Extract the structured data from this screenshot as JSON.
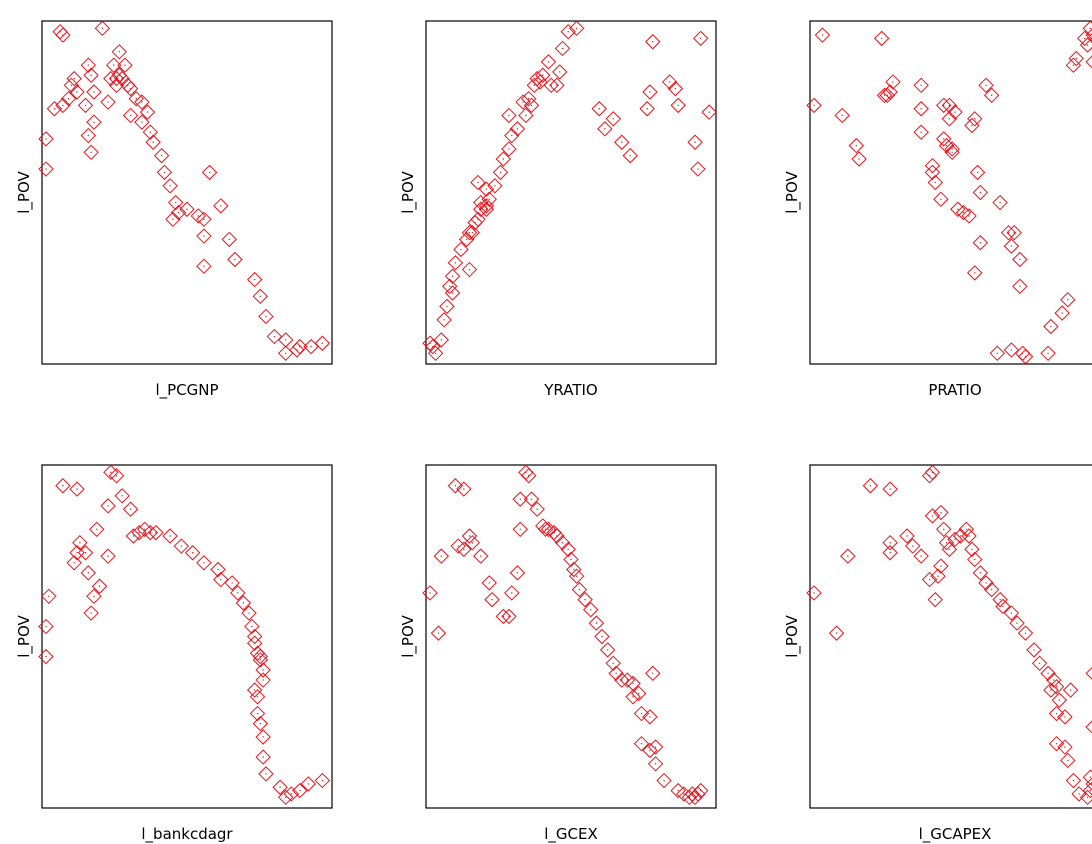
{
  "colors": {
    "marker": "#e8131b",
    "frame": "#000000",
    "background": "#ffffff"
  },
  "chart_data": [
    {
      "type": "scatter",
      "xlabel": "l_PCGNP",
      "ylabel": "l_POV",
      "xlim": [
        0,
        1
      ],
      "ylim": [
        0,
        1
      ],
      "points": [
        [
          0.05,
          0.98
        ],
        [
          0.06,
          0.97
        ],
        [
          0.2,
          0.99
        ],
        [
          0.0,
          0.66
        ],
        [
          0.0,
          0.57
        ],
        [
          0.03,
          0.75
        ],
        [
          0.06,
          0.76
        ],
        [
          0.08,
          0.78
        ],
        [
          0.09,
          0.82
        ],
        [
          0.11,
          0.8
        ],
        [
          0.1,
          0.84
        ],
        [
          0.14,
          0.76
        ],
        [
          0.16,
          0.85
        ],
        [
          0.15,
          0.88
        ],
        [
          0.17,
          0.8
        ],
        [
          0.17,
          0.71
        ],
        [
          0.15,
          0.67
        ],
        [
          0.16,
          0.62
        ],
        [
          0.22,
          0.77
        ],
        [
          0.23,
          0.84
        ],
        [
          0.24,
          0.88
        ],
        [
          0.25,
          0.84
        ],
        [
          0.26,
          0.85
        ],
        [
          0.27,
          0.84
        ],
        [
          0.25,
          0.82
        ],
        [
          0.26,
          0.92
        ],
        [
          0.28,
          0.88
        ],
        [
          0.29,
          0.82
        ],
        [
          0.3,
          0.81
        ],
        [
          0.32,
          0.78
        ],
        [
          0.34,
          0.77
        ],
        [
          0.3,
          0.73
        ],
        [
          0.34,
          0.71
        ],
        [
          0.36,
          0.74
        ],
        [
          0.37,
          0.68
        ],
        [
          0.38,
          0.65
        ],
        [
          0.41,
          0.61
        ],
        [
          0.42,
          0.56
        ],
        [
          0.44,
          0.52
        ],
        [
          0.46,
          0.47
        ],
        [
          0.47,
          0.44
        ],
        [
          0.45,
          0.42
        ],
        [
          0.5,
          0.45
        ],
        [
          0.54,
          0.43
        ],
        [
          0.56,
          0.42
        ],
        [
          0.58,
          0.56
        ],
        [
          0.62,
          0.46
        ],
        [
          0.56,
          0.37
        ],
        [
          0.56,
          0.28
        ],
        [
          0.65,
          0.36
        ],
        [
          0.67,
          0.3
        ],
        [
          0.74,
          0.24
        ],
        [
          0.76,
          0.19
        ],
        [
          0.78,
          0.13
        ],
        [
          0.81,
          0.07
        ],
        [
          0.85,
          0.06
        ],
        [
          0.85,
          0.02
        ],
        [
          0.89,
          0.03
        ],
        [
          0.9,
          0.04
        ],
        [
          0.94,
          0.04
        ],
        [
          0.98,
          0.05
        ]
      ]
    },
    {
      "type": "scatter",
      "xlabel": "YRATIO",
      "ylabel": "l_POV",
      "xlim": [
        0,
        1
      ],
      "ylim": [
        0,
        1
      ],
      "points": [
        [
          0.0,
          0.05
        ],
        [
          0.01,
          0.04
        ],
        [
          0.02,
          0.02
        ],
        [
          0.04,
          0.06
        ],
        [
          0.05,
          0.12
        ],
        [
          0.06,
          0.16
        ],
        [
          0.07,
          0.22
        ],
        [
          0.08,
          0.25
        ],
        [
          0.09,
          0.29
        ],
        [
          0.11,
          0.33
        ],
        [
          0.13,
          0.36
        ],
        [
          0.14,
          0.38
        ],
        [
          0.15,
          0.38
        ],
        [
          0.16,
          0.41
        ],
        [
          0.18,
          0.45
        ],
        [
          0.2,
          0.46
        ],
        [
          0.21,
          0.48
        ],
        [
          0.23,
          0.52
        ],
        [
          0.17,
          0.53
        ],
        [
          0.18,
          0.47
        ],
        [
          0.17,
          0.42
        ],
        [
          0.2,
          0.45
        ],
        [
          0.25,
          0.56
        ],
        [
          0.26,
          0.6
        ],
        [
          0.28,
          0.63
        ],
        [
          0.29,
          0.67
        ],
        [
          0.31,
          0.69
        ],
        [
          0.34,
          0.73
        ],
        [
          0.33,
          0.77
        ],
        [
          0.35,
          0.78
        ],
        [
          0.37,
          0.82
        ],
        [
          0.38,
          0.84
        ],
        [
          0.39,
          0.83
        ],
        [
          0.4,
          0.85
        ],
        [
          0.42,
          0.89
        ],
        [
          0.43,
          0.82
        ],
        [
          0.45,
          0.82
        ],
        [
          0.46,
          0.86
        ],
        [
          0.47,
          0.93
        ],
        [
          0.49,
          0.98
        ],
        [
          0.52,
          0.99
        ],
        [
          0.6,
          0.75
        ],
        [
          0.62,
          0.69
        ],
        [
          0.65,
          0.72
        ],
        [
          0.71,
          0.61
        ],
        [
          0.68,
          0.65
        ],
        [
          0.77,
          0.75
        ],
        [
          0.78,
          0.8
        ],
        [
          0.85,
          0.83
        ],
        [
          0.87,
          0.81
        ],
        [
          0.88,
          0.76
        ],
        [
          0.94,
          0.65
        ],
        [
          0.95,
          0.57
        ],
        [
          0.99,
          0.74
        ],
        [
          0.79,
          0.95
        ],
        [
          0.96,
          0.96
        ],
        [
          0.28,
          0.73
        ],
        [
          0.36,
          0.76
        ],
        [
          0.14,
          0.27
        ],
        [
          0.2,
          0.51
        ],
        [
          0.08,
          0.2
        ]
      ]
    },
    {
      "type": "scatter",
      "xlabel": "PRATIO",
      "ylabel": "l_POV",
      "xlim": [
        0,
        1
      ],
      "ylim": [
        0,
        1
      ],
      "points": [
        [
          0.0,
          0.76
        ],
        [
          0.03,
          0.97
        ],
        [
          0.1,
          0.73
        ],
        [
          0.15,
          0.64
        ],
        [
          0.16,
          0.6
        ],
        [
          0.24,
          0.96
        ],
        [
          0.25,
          0.79
        ],
        [
          0.26,
          0.79
        ],
        [
          0.27,
          0.8
        ],
        [
          0.28,
          0.83
        ],
        [
          0.38,
          0.82
        ],
        [
          0.38,
          0.75
        ],
        [
          0.38,
          0.68
        ],
        [
          0.42,
          0.58
        ],
        [
          0.42,
          0.56
        ],
        [
          0.43,
          0.53
        ],
        [
          0.45,
          0.48
        ],
        [
          0.46,
          0.76
        ],
        [
          0.46,
          0.66
        ],
        [
          0.47,
          0.64
        ],
        [
          0.48,
          0.72
        ],
        [
          0.48,
          0.76
        ],
        [
          0.49,
          0.63
        ],
        [
          0.49,
          0.62
        ],
        [
          0.5,
          0.74
        ],
        [
          0.51,
          0.45
        ],
        [
          0.53,
          0.44
        ],
        [
          0.55,
          0.43
        ],
        [
          0.56,
          0.7
        ],
        [
          0.57,
          0.72
        ],
        [
          0.58,
          0.56
        ],
        [
          0.59,
          0.5
        ],
        [
          0.59,
          0.35
        ],
        [
          0.57,
          0.26
        ],
        [
          0.61,
          0.82
        ],
        [
          0.63,
          0.79
        ],
        [
          0.66,
          0.47
        ],
        [
          0.69,
          0.38
        ],
        [
          0.71,
          0.38
        ],
        [
          0.7,
          0.34
        ],
        [
          0.73,
          0.3
        ],
        [
          0.73,
          0.22
        ],
        [
          0.65,
          0.02
        ],
        [
          0.7,
          0.03
        ],
        [
          0.74,
          0.02
        ],
        [
          0.75,
          0.01
        ],
        [
          0.83,
          0.02
        ],
        [
          0.84,
          0.1
        ],
        [
          0.88,
          0.14
        ],
        [
          0.9,
          0.18
        ],
        [
          0.92,
          0.88
        ],
        [
          0.93,
          0.9
        ],
        [
          0.97,
          0.94
        ],
        [
          0.98,
          0.99
        ],
        [
          0.99,
          0.97
        ],
        [
          0.99,
          0.89
        ],
        [
          0.96,
          0.96
        ]
      ]
    },
    {
      "type": "scatter",
      "xlabel": "l_bankcdagr",
      "ylabel": "l_POV",
      "xlim": [
        0,
        1
      ],
      "ylim": [
        0,
        1
      ],
      "points": [
        [
          0.0,
          0.53
        ],
        [
          0.01,
          0.62
        ],
        [
          0.0,
          0.44
        ],
        [
          0.06,
          0.95
        ],
        [
          0.11,
          0.94
        ],
        [
          0.12,
          0.78
        ],
        [
          0.11,
          0.75
        ],
        [
          0.1,
          0.72
        ],
        [
          0.14,
          0.75
        ],
        [
          0.15,
          0.69
        ],
        [
          0.16,
          0.57
        ],
        [
          0.17,
          0.62
        ],
        [
          0.19,
          0.65
        ],
        [
          0.18,
          0.82
        ],
        [
          0.22,
          0.74
        ],
        [
          0.22,
          0.89
        ],
        [
          0.23,
          0.99
        ],
        [
          0.25,
          0.98
        ],
        [
          0.27,
          0.92
        ],
        [
          0.3,
          0.88
        ],
        [
          0.31,
          0.8
        ],
        [
          0.33,
          0.81
        ],
        [
          0.35,
          0.82
        ],
        [
          0.37,
          0.81
        ],
        [
          0.39,
          0.81
        ],
        [
          0.44,
          0.8
        ],
        [
          0.48,
          0.77
        ],
        [
          0.52,
          0.75
        ],
        [
          0.56,
          0.72
        ],
        [
          0.61,
          0.7
        ],
        [
          0.62,
          0.67
        ],
        [
          0.66,
          0.66
        ],
        [
          0.68,
          0.63
        ],
        [
          0.7,
          0.6
        ],
        [
          0.72,
          0.57
        ],
        [
          0.73,
          0.53
        ],
        [
          0.74,
          0.5
        ],
        [
          0.74,
          0.48
        ],
        [
          0.75,
          0.45
        ],
        [
          0.76,
          0.43
        ],
        [
          0.77,
          0.4
        ],
        [
          0.77,
          0.37
        ],
        [
          0.76,
          0.44
        ],
        [
          0.74,
          0.34
        ],
        [
          0.75,
          0.32
        ],
        [
          0.75,
          0.27
        ],
        [
          0.76,
          0.24
        ],
        [
          0.77,
          0.2
        ],
        [
          0.77,
          0.14
        ],
        [
          0.78,
          0.09
        ],
        [
          0.83,
          0.05
        ],
        [
          0.85,
          0.02
        ],
        [
          0.87,
          0.03
        ],
        [
          0.9,
          0.04
        ],
        [
          0.93,
          0.06
        ],
        [
          0.98,
          0.07
        ]
      ]
    },
    {
      "type": "scatter",
      "xlabel": "l_GCEX",
      "ylabel": "l_POV",
      "xlim": [
        0,
        1
      ],
      "ylim": [
        0,
        1
      ],
      "points": [
        [
          0.0,
          0.63
        ],
        [
          0.03,
          0.51
        ],
        [
          0.04,
          0.74
        ],
        [
          0.09,
          0.95
        ],
        [
          0.12,
          0.94
        ],
        [
          0.1,
          0.77
        ],
        [
          0.12,
          0.76
        ],
        [
          0.14,
          0.8
        ],
        [
          0.15,
          0.78
        ],
        [
          0.18,
          0.74
        ],
        [
          0.21,
          0.66
        ],
        [
          0.22,
          0.61
        ],
        [
          0.26,
          0.56
        ],
        [
          0.28,
          0.56
        ],
        [
          0.29,
          0.63
        ],
        [
          0.31,
          0.69
        ],
        [
          0.32,
          0.82
        ],
        [
          0.32,
          0.91
        ],
        [
          0.34,
          0.99
        ],
        [
          0.35,
          0.98
        ],
        [
          0.36,
          0.91
        ],
        [
          0.38,
          0.88
        ],
        [
          0.4,
          0.83
        ],
        [
          0.41,
          0.82
        ],
        [
          0.42,
          0.82
        ],
        [
          0.44,
          0.81
        ],
        [
          0.45,
          0.8
        ],
        [
          0.47,
          0.78
        ],
        [
          0.49,
          0.76
        ],
        [
          0.5,
          0.73
        ],
        [
          0.51,
          0.7
        ],
        [
          0.52,
          0.68
        ],
        [
          0.53,
          0.64
        ],
        [
          0.55,
          0.61
        ],
        [
          0.57,
          0.58
        ],
        [
          0.59,
          0.54
        ],
        [
          0.61,
          0.5
        ],
        [
          0.63,
          0.46
        ],
        [
          0.65,
          0.42
        ],
        [
          0.66,
          0.39
        ],
        [
          0.68,
          0.37
        ],
        [
          0.7,
          0.37
        ],
        [
          0.72,
          0.36
        ],
        [
          0.72,
          0.32
        ],
        [
          0.74,
          0.33
        ],
        [
          0.75,
          0.27
        ],
        [
          0.78,
          0.26
        ],
        [
          0.75,
          0.18
        ],
        [
          0.78,
          0.16
        ],
        [
          0.8,
          0.12
        ],
        [
          0.83,
          0.07
        ],
        [
          0.88,
          0.04
        ],
        [
          0.9,
          0.03
        ],
        [
          0.92,
          0.02
        ],
        [
          0.93,
          0.03
        ],
        [
          0.94,
          0.02
        ],
        [
          0.95,
          0.03
        ],
        [
          0.96,
          0.04
        ],
        [
          0.79,
          0.39
        ],
        [
          0.8,
          0.17
        ]
      ]
    },
    {
      "type": "scatter",
      "xlabel": "l_GCAPEX",
      "ylabel": "l_POV",
      "xlim": [
        0,
        1
      ],
      "ylim": [
        0,
        1
      ],
      "points": [
        [
          0.0,
          0.63
        ],
        [
          0.08,
          0.51
        ],
        [
          0.12,
          0.74
        ],
        [
          0.2,
          0.95
        ],
        [
          0.27,
          0.94
        ],
        [
          0.27,
          0.78
        ],
        [
          0.27,
          0.75
        ],
        [
          0.33,
          0.8
        ],
        [
          0.35,
          0.77
        ],
        [
          0.38,
          0.74
        ],
        [
          0.41,
          0.67
        ],
        [
          0.43,
          0.61
        ],
        [
          0.44,
          0.68
        ],
        [
          0.45,
          0.71
        ],
        [
          0.45,
          0.87
        ],
        [
          0.42,
          0.86
        ],
        [
          0.41,
          0.98
        ],
        [
          0.42,
          0.99
        ],
        [
          0.46,
          0.82
        ],
        [
          0.47,
          0.78
        ],
        [
          0.48,
          0.76
        ],
        [
          0.5,
          0.79
        ],
        [
          0.52,
          0.8
        ],
        [
          0.54,
          0.82
        ],
        [
          0.55,
          0.8
        ],
        [
          0.56,
          0.76
        ],
        [
          0.57,
          0.73
        ],
        [
          0.59,
          0.69
        ],
        [
          0.61,
          0.66
        ],
        [
          0.63,
          0.64
        ],
        [
          0.66,
          0.61
        ],
        [
          0.67,
          0.59
        ],
        [
          0.7,
          0.57
        ],
        [
          0.72,
          0.54
        ],
        [
          0.75,
          0.51
        ],
        [
          0.78,
          0.46
        ],
        [
          0.8,
          0.42
        ],
        [
          0.83,
          0.39
        ],
        [
          0.85,
          0.37
        ],
        [
          0.84,
          0.34
        ],
        [
          0.86,
          0.35
        ],
        [
          0.87,
          0.31
        ],
        [
          0.86,
          0.27
        ],
        [
          0.89,
          0.26
        ],
        [
          0.86,
          0.18
        ],
        [
          0.89,
          0.17
        ],
        [
          0.9,
          0.13
        ],
        [
          0.92,
          0.07
        ],
        [
          0.94,
          0.03
        ],
        [
          0.97,
          0.02
        ],
        [
          0.98,
          0.04
        ],
        [
          0.99,
          0.06
        ],
        [
          0.98,
          0.08
        ],
        [
          0.99,
          0.23
        ],
        [
          0.91,
          0.34
        ],
        [
          0.99,
          0.39
        ]
      ]
    }
  ]
}
